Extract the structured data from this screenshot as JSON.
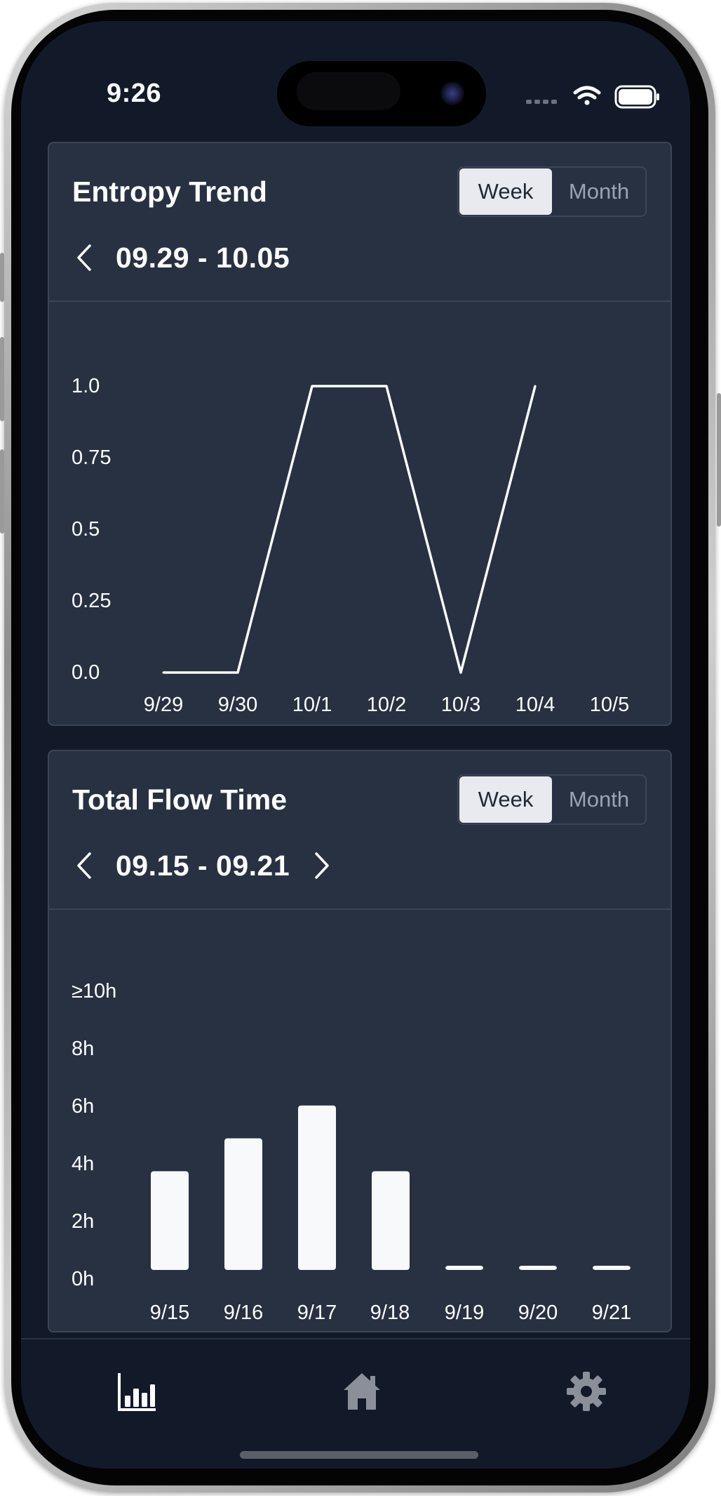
{
  "status_bar": {
    "time": "9:26"
  },
  "entropy_card": {
    "title": "Entropy Trend",
    "toggle": {
      "week_label": "Week",
      "month_label": "Month",
      "selected": "Week"
    },
    "date_range": "09.29 - 10.05",
    "chart_data": {
      "type": "line",
      "x": [
        "9/29",
        "9/30",
        "10/1",
        "10/2",
        "10/3",
        "10/4",
        "10/5"
      ],
      "values": [
        0.0,
        0.0,
        1.0,
        1.0,
        0.0,
        1.0,
        null
      ],
      "y_tick_labels": [
        "1.0",
        "0.75",
        "0.5",
        "0.25",
        "0.0"
      ],
      "ylim": [
        0,
        1
      ],
      "grid": false,
      "line_color": "#ffffff"
    }
  },
  "flow_card": {
    "title": "Total Flow Time",
    "toggle": {
      "week_label": "Week",
      "month_label": "Month",
      "selected": "Week"
    },
    "date_range": "09.15 - 09.21",
    "chart_data": {
      "type": "bar",
      "categories": [
        "9/15",
        "9/16",
        "9/17",
        "9/18",
        "9/19",
        "9/20",
        "9/21"
      ],
      "values": [
        3.3,
        4.4,
        5.5,
        3.3,
        0,
        0,
        0
      ],
      "y_tick_labels": [
        "≥10h",
        "8h",
        "6h",
        "4h",
        "2h",
        "0h"
      ],
      "ylim": [
        0,
        10
      ],
      "grid": false,
      "bar_color": "#f8f9fb"
    }
  },
  "tab_bar": {
    "items": [
      {
        "icon": "bar-chart-icon",
        "active": true
      },
      {
        "icon": "home-icon",
        "active": false
      },
      {
        "icon": "gear-icon",
        "active": false
      }
    ]
  },
  "colors": {
    "screen_bg": "#121a2a",
    "card_bg": "#273142",
    "border": "#3b4557",
    "text": "#ffffff",
    "muted": "#9aa3b2"
  }
}
